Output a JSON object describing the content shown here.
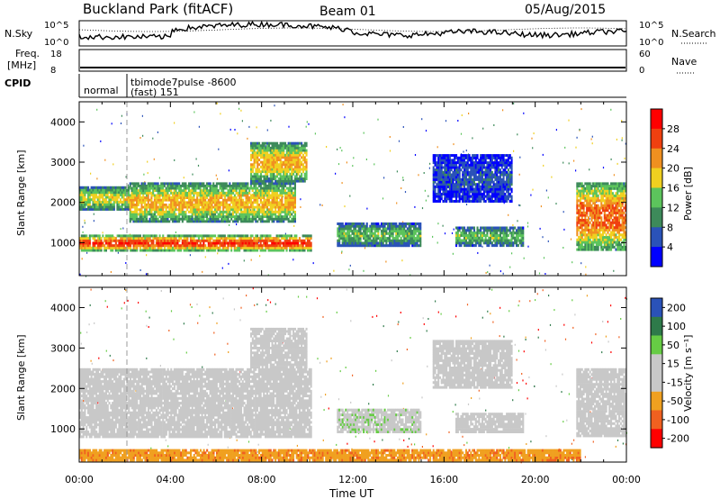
{
  "header": {
    "title": "Buckland Park (fitACF)",
    "beam": "Beam 01",
    "date": "05/Aug/2015"
  },
  "noise_panel": {
    "left_label": "N.Sky",
    "right_label": "N.Search",
    "left_ticks": [
      "10^5",
      "10^0"
    ],
    "right_ticks": [
      "10^5",
      "10^0"
    ]
  },
  "freq_panel": {
    "left_label_1": "Freq.",
    "left_label_2": "[MHz]",
    "left_ticks": [
      "18",
      "8"
    ],
    "right_ticks": [
      "60",
      "0"
    ],
    "right_label": "Nave"
  },
  "cpid_panel": {
    "label": "CPID",
    "mode_1": "normal",
    "mode_2_line1": "tbimode7pulse -8600",
    "mode_2_line2": "(fast) 151"
  },
  "chart_data": [
    {
      "type": "heatmap",
      "name": "power",
      "ylabel": "Slant Range [km]",
      "xlabel": "Time UT",
      "xlim": [
        "00:00",
        "24:00"
      ],
      "ylim": [
        180,
        4500
      ],
      "x_ticks": [
        "00:00",
        "04:00",
        "08:00",
        "12:00",
        "16:00",
        "20:00",
        "00:00"
      ],
      "y_ticks": [
        1000,
        2000,
        3000,
        4000
      ],
      "colorbar": {
        "label": "Power [dB]",
        "ticks": [
          4,
          8,
          12,
          16,
          20,
          24,
          28
        ],
        "colors": [
          "#0000ff",
          "#2a52b8",
          "#3d8a5a",
          "#5cc45c",
          "#f0d020",
          "#f09020",
          "#f04010",
          "#ff0000"
        ]
      },
      "regions": [
        {
          "t0": 0.0,
          "t1": 10.2,
          "r0": 780,
          "r1": 1200,
          "level": 28
        },
        {
          "t0": 0.0,
          "t1": 2.2,
          "r0": 1800,
          "r1": 2400,
          "level": 18
        },
        {
          "t0": 2.2,
          "t1": 9.5,
          "r0": 1500,
          "r1": 2500,
          "level": 20
        },
        {
          "t0": 7.5,
          "t1": 10.0,
          "r0": 2500,
          "r1": 3500,
          "level": 20
        },
        {
          "t0": 11.3,
          "t1": 15.0,
          "r0": 900,
          "r1": 1500,
          "level": 14
        },
        {
          "t0": 16.5,
          "t1": 19.5,
          "r0": 900,
          "r1": 1400,
          "level": 14
        },
        {
          "t0": 15.5,
          "t1": 19.0,
          "r0": 2000,
          "r1": 3200,
          "level": 6
        },
        {
          "t0": 21.8,
          "t1": 24.0,
          "r0": 800,
          "r1": 2500,
          "level": 24
        }
      ]
    },
    {
      "type": "heatmap",
      "name": "velocity",
      "ylabel": "Slant Range [km]",
      "xlabel": "Time UT",
      "xlim": [
        "00:00",
        "24:00"
      ],
      "ylim": [
        180,
        4500
      ],
      "x_ticks": [
        "00:00",
        "04:00",
        "08:00",
        "12:00",
        "16:00",
        "20:00",
        "00:00"
      ],
      "y_ticks": [
        1000,
        2000,
        3000,
        4000
      ],
      "colorbar": {
        "label": "Velocity [m s⁻¹]",
        "ticks": [
          200,
          100,
          50,
          15,
          -15,
          -50,
          -100,
          -200
        ],
        "colors": [
          "#2a52b8",
          "#2e7a4a",
          "#66cc44",
          "#c8c8c8",
          "#c8c8c8",
          "#f0a020",
          "#f06020",
          "#ff0000"
        ]
      },
      "regions": [
        {
          "t0": 0.0,
          "t1": 10.2,
          "r0": 780,
          "r1": 2500,
          "level": 0
        },
        {
          "t0": 7.5,
          "t1": 10.0,
          "r0": 2500,
          "r1": 3500,
          "level": 0
        },
        {
          "t0": 11.3,
          "t1": 15.0,
          "r0": 900,
          "r1": 1500,
          "level": 40
        },
        {
          "t0": 16.5,
          "t1": 19.5,
          "r0": 900,
          "r1": 1400,
          "level": 0
        },
        {
          "t0": 15.5,
          "t1": 19.0,
          "r0": 2000,
          "r1": 3200,
          "level": 0
        },
        {
          "t0": 21.8,
          "t1": 24.0,
          "r0": 800,
          "r1": 2500,
          "level": 0
        },
        {
          "t0": 0.0,
          "t1": 22.0,
          "r0": 200,
          "r1": 500,
          "level": -40
        }
      ]
    }
  ]
}
